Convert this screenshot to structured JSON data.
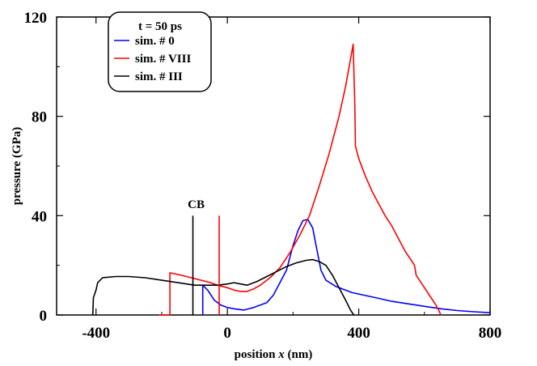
{
  "chart_data": {
    "type": "line",
    "xlabel_prefix": "position ",
    "xlabel_var": "x",
    "xlabel_suffix": " (nm)",
    "ylabel": "pressure (GPa)",
    "xlim": [
      -520,
      800
    ],
    "ylim": [
      0,
      120
    ],
    "x_ticks": [
      -400,
      0,
      400,
      800
    ],
    "x_tick_labels": [
      "-400",
      "0",
      "400",
      "800"
    ],
    "y_ticks": [
      0,
      40,
      80,
      120
    ],
    "y_tick_labels": [
      "0",
      "40",
      "80",
      "120"
    ],
    "grid": false,
    "legend": {
      "placement": "top-left",
      "title": "t = 50 ps"
    },
    "annotations": [
      {
        "text": "CB",
        "x": -95,
        "y": 43
      }
    ],
    "series": [
      {
        "name": "sim. # 0",
        "color": "#0000ff",
        "points": [
          [
            -75,
            0
          ],
          [
            -75,
            12
          ],
          [
            -60,
            10
          ],
          [
            -40,
            6
          ],
          [
            -20,
            4
          ],
          [
            0,
            3
          ],
          [
            20,
            2.5
          ],
          [
            50,
            2
          ],
          [
            80,
            3
          ],
          [
            100,
            4
          ],
          [
            120,
            5
          ],
          [
            140,
            8
          ],
          [
            160,
            13
          ],
          [
            180,
            18
          ],
          [
            200,
            28
          ],
          [
            215,
            34
          ],
          [
            230,
            38
          ],
          [
            245,
            38.5
          ],
          [
            260,
            35
          ],
          [
            270,
            28
          ],
          [
            285,
            18
          ],
          [
            300,
            14
          ],
          [
            330,
            11.5
          ],
          [
            380,
            9
          ],
          [
            450,
            7
          ],
          [
            500,
            5.5
          ],
          [
            550,
            4.5
          ],
          [
            600,
            3.5
          ],
          [
            650,
            2.5
          ],
          [
            700,
            1.8
          ],
          [
            750,
            1.3
          ],
          [
            800,
            0.9
          ]
        ]
      },
      {
        "name": "sim. # VIII",
        "color": "#ff0000",
        "points": [
          [
            -210,
            0
          ],
          [
            -175,
            0
          ],
          [
            -175,
            17
          ],
          [
            -140,
            16
          ],
          [
            -110,
            15
          ],
          [
            -80,
            14
          ],
          [
            -50,
            13
          ],
          [
            -30,
            12
          ],
          [
            0,
            11
          ],
          [
            20,
            10
          ],
          [
            40,
            9.5
          ],
          [
            60,
            9.5
          ],
          [
            80,
            10.5
          ],
          [
            100,
            12
          ],
          [
            130,
            15
          ],
          [
            160,
            19
          ],
          [
            190,
            25
          ],
          [
            220,
            32
          ],
          [
            250,
            40
          ],
          [
            280,
            52
          ],
          [
            310,
            65
          ],
          [
            340,
            80
          ],
          [
            360,
            92
          ],
          [
            375,
            103
          ],
          [
            383,
            109
          ],
          [
            388,
            85
          ],
          [
            390,
            68
          ],
          [
            400,
            63
          ],
          [
            420,
            56
          ],
          [
            440,
            50
          ],
          [
            460,
            45
          ],
          [
            480,
            40
          ],
          [
            500,
            36
          ],
          [
            520,
            31
          ],
          [
            540,
            26
          ],
          [
            560,
            22
          ],
          [
            570,
            20
          ],
          [
            575,
            16
          ],
          [
            590,
            13
          ],
          [
            605,
            10
          ],
          [
            620,
            7
          ],
          [
            635,
            4
          ],
          [
            645,
            1.5
          ],
          [
            650,
            0
          ]
        ]
      },
      {
        "name": "sim. # III",
        "color": "#000000",
        "points": [
          [
            -410,
            0
          ],
          [
            -408,
            7
          ],
          [
            -400,
            10
          ],
          [
            -395,
            13
          ],
          [
            -380,
            15
          ],
          [
            -340,
            15.5
          ],
          [
            -300,
            15.5
          ],
          [
            -250,
            15
          ],
          [
            -200,
            14
          ],
          [
            -150,
            13
          ],
          [
            -100,
            12
          ],
          [
            -60,
            12
          ],
          [
            -30,
            12
          ],
          [
            0,
            12.5
          ],
          [
            20,
            13
          ],
          [
            40,
            12.5
          ],
          [
            60,
            12
          ],
          [
            90,
            13.5
          ],
          [
            120,
            15.5
          ],
          [
            150,
            17.5
          ],
          [
            180,
            19.5
          ],
          [
            210,
            21
          ],
          [
            240,
            22
          ],
          [
            260,
            22.3
          ],
          [
            280,
            21.5
          ],
          [
            300,
            20
          ],
          [
            320,
            16
          ],
          [
            340,
            11
          ],
          [
            360,
            6
          ],
          [
            375,
            2
          ],
          [
            385,
            0
          ]
        ]
      }
    ],
    "markers": [
      {
        "name": "CB-black-marker",
        "color": "#000000",
        "x": -105,
        "y_top": 40
      },
      {
        "name": "CB-red-marker",
        "color": "#ff0000",
        "x": -25,
        "y_top": 40
      }
    ]
  }
}
